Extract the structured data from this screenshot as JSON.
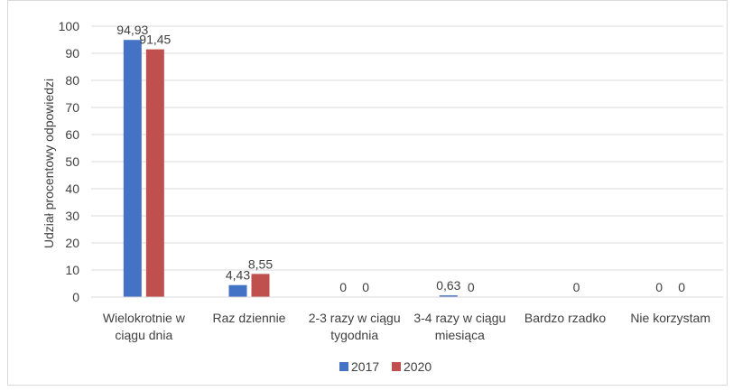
{
  "chart_data": {
    "type": "bar",
    "title": "",
    "xlabel": "",
    "ylabel": "Udział procentowy odpowiedzi",
    "ylim": [
      0,
      100
    ],
    "yticks": [
      0,
      10,
      20,
      30,
      40,
      50,
      60,
      70,
      80,
      90,
      100
    ],
    "grid": true,
    "legend_position": "bottom",
    "categories": [
      [
        "Wielokrotnie w",
        "ciągu dnia"
      ],
      [
        "Raz dziennie"
      ],
      [
        "2-3 razy w ciągu",
        "tygodnia"
      ],
      [
        "3-4 razy w ciągu",
        "miesiąca"
      ],
      [
        "Bardzo rzadko"
      ],
      [
        "Nie korzystam"
      ]
    ],
    "series": [
      {
        "name": "2017",
        "color": "#4472c4",
        "values": [
          94.93,
          4.43,
          0,
          0.63,
          null,
          0
        ],
        "labels": [
          "94,93",
          "4,43",
          "0",
          "0,63",
          "",
          "0"
        ]
      },
      {
        "name": "2020",
        "color": "#c0504d",
        "values": [
          91.45,
          8.55,
          0,
          0,
          0,
          0
        ],
        "labels": [
          "91,45",
          "8,55",
          "0",
          "0",
          "0",
          "0"
        ]
      }
    ]
  }
}
